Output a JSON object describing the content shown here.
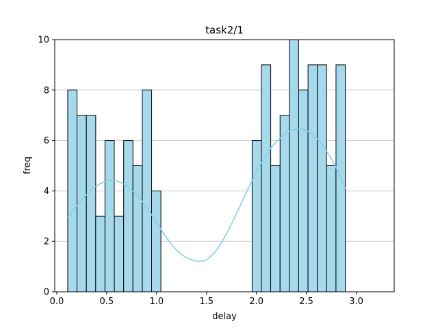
{
  "chart_data": {
    "type": "bar",
    "title": "task2/1",
    "xlabel": "delay",
    "ylabel": "freq",
    "xlim": [
      -0.02,
      3.38
    ],
    "ylim": [
      0,
      10
    ],
    "xticks": [
      0.0,
      0.5,
      1.0,
      1.5,
      2.0,
      2.5,
      3.0
    ],
    "xtick_labels": [
      "0.0",
      "0.5",
      "1.0",
      "1.5",
      "2.0",
      "2.5",
      "3.0"
    ],
    "yticks": [
      0,
      2,
      4,
      6,
      8,
      10
    ],
    "ytick_labels": [
      "0",
      "2",
      "4",
      "6",
      "8",
      "10"
    ],
    "grid": "y",
    "bin_width": 0.0933,
    "bins": [
      {
        "x": 0.11,
        "value": 8
      },
      {
        "x": 0.203,
        "value": 7
      },
      {
        "x": 0.297,
        "value": 7
      },
      {
        "x": 0.39,
        "value": 3
      },
      {
        "x": 0.483,
        "value": 6
      },
      {
        "x": 0.577,
        "value": 3
      },
      {
        "x": 0.67,
        "value": 6
      },
      {
        "x": 0.763,
        "value": 5
      },
      {
        "x": 0.857,
        "value": 8
      },
      {
        "x": 0.95,
        "value": 4
      },
      {
        "x": 1.957,
        "value": 6
      },
      {
        "x": 2.05,
        "value": 9
      },
      {
        "x": 2.143,
        "value": 5
      },
      {
        "x": 2.237,
        "value": 7
      },
      {
        "x": 2.33,
        "value": 10
      },
      {
        "x": 2.423,
        "value": 8
      },
      {
        "x": 2.517,
        "value": 9
      },
      {
        "x": 2.61,
        "value": 9
      },
      {
        "x": 2.703,
        "value": 5
      },
      {
        "x": 2.797,
        "value": 9
      }
    ],
    "kde": {
      "x": [
        0.11,
        0.2,
        0.3,
        0.4,
        0.5,
        0.55,
        0.6,
        0.7,
        0.8,
        0.9,
        1.0,
        1.1,
        1.2,
        1.3,
        1.4,
        1.46,
        1.5,
        1.6,
        1.7,
        1.8,
        1.9,
        2.0,
        2.1,
        2.2,
        2.3,
        2.4,
        2.46,
        2.5,
        2.6,
        2.7,
        2.8,
        2.89
      ],
      "y": [
        2.95,
        3.4,
        3.85,
        4.2,
        4.4,
        4.43,
        4.4,
        4.2,
        3.85,
        3.35,
        2.75,
        2.15,
        1.65,
        1.35,
        1.22,
        1.22,
        1.27,
        1.65,
        2.3,
        3.1,
        3.95,
        4.75,
        5.45,
        5.95,
        6.3,
        6.45,
        6.45,
        6.4,
        6.1,
        5.6,
        4.9,
        4.1
      ]
    },
    "colors": {
      "bar_fill": "#a6d9ec",
      "bar_edge": "#000000",
      "kde_line": "#87ceeb",
      "grid": "#c8c8c8",
      "axis": "#000000"
    }
  }
}
